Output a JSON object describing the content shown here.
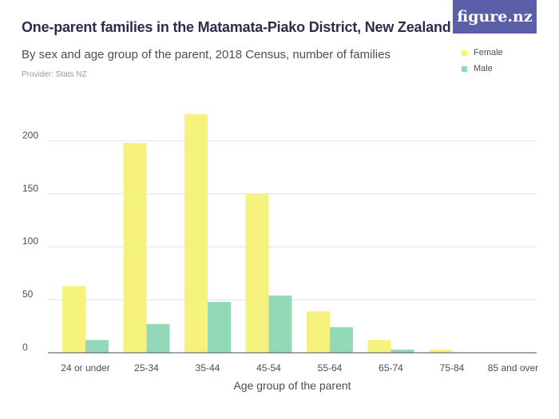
{
  "header": {
    "title": "One-parent families in the Matamata-Piako District, New Zealand",
    "subtitle": "By sex and age group of the parent, 2018 Census, number of families",
    "provider": "Provider: Stats NZ",
    "brand": "figure.nz"
  },
  "colors": {
    "female": "#f6f27e",
    "male": "#93d9b9",
    "grid": "#e2e2e2",
    "axis": "#4a4c5e",
    "brand_bg": "#5b5ea8"
  },
  "chart_data": {
    "type": "bar",
    "title": "One-parent families in the Matamata-Piako District, New Zealand",
    "xlabel": "Age group of the parent",
    "ylabel": "",
    "ylim": [
      0,
      250
    ],
    "yticks": [
      0,
      50,
      100,
      150,
      200
    ],
    "grid": true,
    "legend_position": "top-right",
    "categories": [
      "24 or under",
      "25-34",
      "35-44",
      "45-54",
      "55-64",
      "65-74",
      "75-84",
      "85 and over"
    ],
    "series": [
      {
        "name": "Female",
        "values": [
          63,
          198,
          225,
          150,
          39,
          12,
          3,
          0
        ]
      },
      {
        "name": "Male",
        "values": [
          12,
          27,
          48,
          54,
          24,
          3,
          0,
          0
        ]
      }
    ]
  }
}
